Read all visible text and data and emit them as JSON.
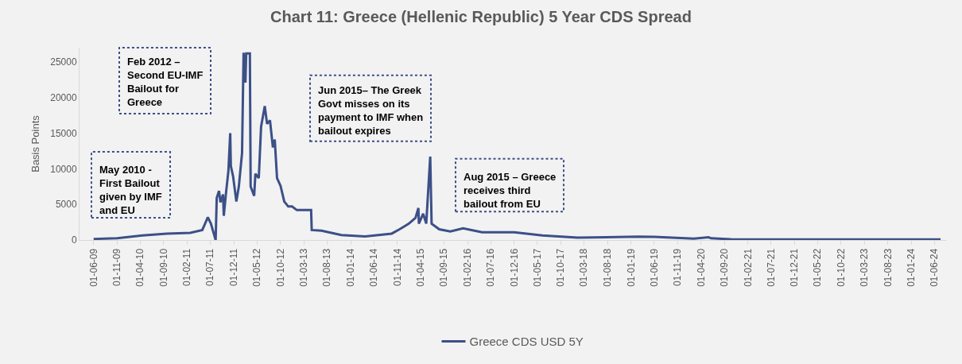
{
  "chart_data": {
    "type": "line",
    "title": "Chart 11: Greece (Hellenic Republic) 5 Year CDS Spread",
    "ylabel": "Basis Points",
    "x": [
      "2009-06-01",
      "2009-11-01",
      "2010-04-15",
      "2010-09-20",
      "2011-02-20",
      "2011-05-10",
      "2011-06-15",
      "2011-07-05",
      "2011-08-05",
      "2011-08-12",
      "2011-08-27",
      "2011-09-05",
      "2011-09-22",
      "2011-09-27",
      "2011-10-12",
      "2011-10-27",
      "2011-11-08",
      "2011-11-12",
      "2011-11-27",
      "2011-12-18",
      "2012-01-03",
      "2012-01-24",
      "2012-02-03",
      "2012-02-15",
      "2012-02-20",
      "2012-03-15",
      "2012-03-20",
      "2012-04-12",
      "2012-04-20",
      "2012-05-12",
      "2012-05-27",
      "2012-06-20",
      "2012-07-05",
      "2012-07-24",
      "2012-08-12",
      "2012-08-24",
      "2012-09-08",
      "2012-10-01",
      "2012-10-25",
      "2012-11-20",
      "2012-12-15",
      "2013-01-15",
      "2013-04-18",
      "2013-04-22",
      "2013-06-25",
      "2013-11-01",
      "2014-04-05",
      "2014-09-25",
      "2014-11-15",
      "2015-01-15",
      "2015-02-27",
      "2015-03-18",
      "2015-03-21",
      "2015-04-18",
      "2015-05-08",
      "2015-06-03",
      "2015-06-12",
      "2015-08-01",
      "2015-10-12",
      "2016-01-03",
      "2016-05-06",
      "2016-12-01",
      "2017-06-03",
      "2018-01-18",
      "2019-02-18",
      "2019-06-01",
      "2020-02-15",
      "2020-05-20",
      "2020-06-05",
      "2020-10-12",
      "2021-12-01",
      "2023-05-01",
      "2024-07-10"
    ],
    "series": [
      {
        "name": "Greece CDS USD 5Y",
        "color": "#3c5088",
        "values": [
          150,
          250,
          650,
          900,
          1000,
          1400,
          3200,
          2300,
          0,
          5900,
          6900,
          5300,
          6400,
          3400,
          6700,
          9700,
          15000,
          10400,
          8900,
          5400,
          7500,
          12200,
          26300,
          22100,
          26200,
          26200,
          7500,
          6200,
          9300,
          8700,
          15900,
          18800,
          16300,
          16800,
          13000,
          14100,
          8700,
          7600,
          5400,
          4700,
          4700,
          4200,
          4200,
          1400,
          1300,
          700,
          500,
          900,
          1500,
          2300,
          3100,
          4500,
          2300,
          3700,
          2300,
          11700,
          2300,
          1500,
          1200,
          1650,
          1100,
          1100,
          650,
          330,
          480,
          450,
          200,
          400,
          250,
          100,
          80,
          70,
          80
        ]
      }
    ],
    "xlim": [
      "2009-03-01",
      "2024-08-15"
    ],
    "xticks": [
      {
        "value": "2009-06-01",
        "label": "01-06-09"
      },
      {
        "value": "2009-11-01",
        "label": "01-11-09"
      },
      {
        "value": "2010-04-01",
        "label": "01-04-10"
      },
      {
        "value": "2010-09-01",
        "label": "01-09-10"
      },
      {
        "value": "2011-02-01",
        "label": "01-02-11"
      },
      {
        "value": "2011-07-01",
        "label": "01-07-11"
      },
      {
        "value": "2011-12-01",
        "label": "01-12-11"
      },
      {
        "value": "2012-05-01",
        "label": "01-05-12"
      },
      {
        "value": "2012-10-01",
        "label": "01-10-12"
      },
      {
        "value": "2013-03-01",
        "label": "01-03-13"
      },
      {
        "value": "2013-08-01",
        "label": "01-08-13"
      },
      {
        "value": "2014-01-01",
        "label": "01-01-14"
      },
      {
        "value": "2014-06-01",
        "label": "01-06-14"
      },
      {
        "value": "2014-11-01",
        "label": "01-11-14"
      },
      {
        "value": "2015-04-01",
        "label": "01-04-15"
      },
      {
        "value": "2015-09-01",
        "label": "01-09-15"
      },
      {
        "value": "2016-02-01",
        "label": "01-02-16"
      },
      {
        "value": "2016-07-01",
        "label": "01-07-16"
      },
      {
        "value": "2016-12-01",
        "label": "01-12-16"
      },
      {
        "value": "2017-05-01",
        "label": "01-05-17"
      },
      {
        "value": "2017-10-01",
        "label": "01-10-17"
      },
      {
        "value": "2018-03-01",
        "label": "01-03-18"
      },
      {
        "value": "2018-08-01",
        "label": "01-08-18"
      },
      {
        "value": "2019-01-01",
        "label": "01-01-19"
      },
      {
        "value": "2019-06-01",
        "label": "01-06-19"
      },
      {
        "value": "2019-11-01",
        "label": "01-11-19"
      },
      {
        "value": "2020-04-01",
        "label": "01-04-20"
      },
      {
        "value": "2020-09-01",
        "label": "01-09-20"
      },
      {
        "value": "2021-02-01",
        "label": "01-02-21"
      },
      {
        "value": "2021-07-01",
        "label": "01-07-21"
      },
      {
        "value": "2021-12-01",
        "label": "01-12-21"
      },
      {
        "value": "2022-05-01",
        "label": "01-05-22"
      },
      {
        "value": "2022-10-01",
        "label": "01-10-22"
      },
      {
        "value": "2023-03-01",
        "label": "01-03-23"
      },
      {
        "value": "2023-08-01",
        "label": "01-08-23"
      },
      {
        "value": "2024-01-01",
        "label": "01-01-24"
      },
      {
        "value": "2024-06-01",
        "label": "01-06-24"
      }
    ],
    "ylim": [
      0,
      27000
    ],
    "yticks": [
      0,
      5000,
      10000,
      15000,
      20000,
      25000
    ],
    "grid": false,
    "legend": "bottom",
    "marker": "none",
    "line_style": "solid",
    "annotations": [
      "May 2010 - First Bailout given by IMF and EU",
      "Feb 2012 – Second EU-IMF Bailout for Greece",
      "Jun 2015– The Greek Govt misses on its payment to IMF when bailout expires",
      "Aug 2015 – Greece receives third bailout from EU"
    ]
  }
}
